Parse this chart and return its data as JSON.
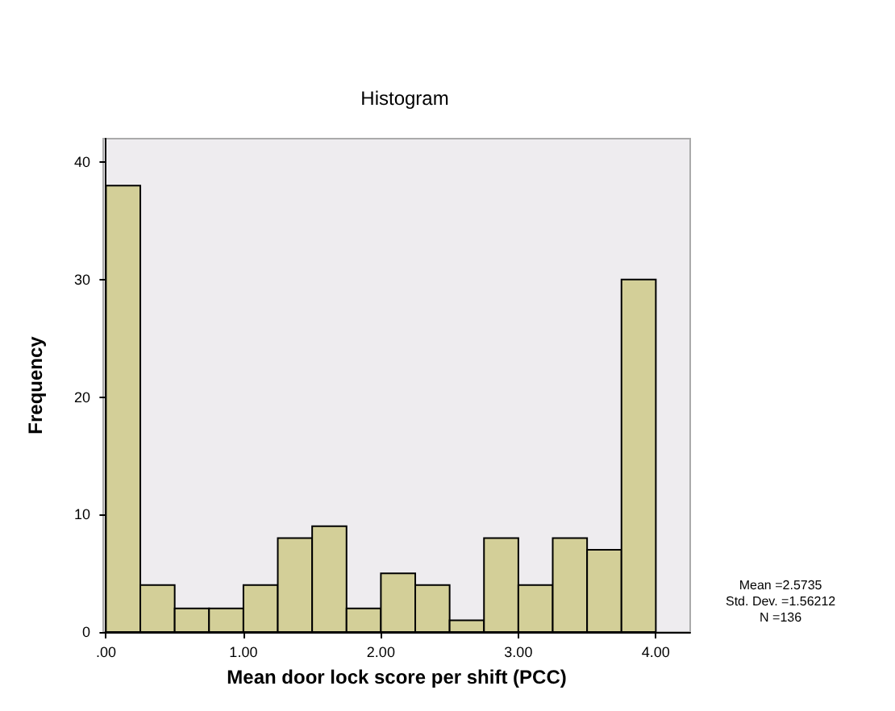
{
  "chart_data": {
    "type": "histogram",
    "title": "Histogram",
    "xlabel": "Mean door lock score per shift (PCC)",
    "ylabel": "Frequency",
    "bins": [
      0,
      0.25,
      0.5,
      0.75,
      1,
      1.25,
      1.5,
      1.75,
      2,
      2.25,
      2.5,
      2.75,
      3,
      3.25,
      3.5,
      3.75,
      4
    ],
    "values": [
      38,
      4,
      2,
      2,
      4,
      8,
      9,
      2,
      5,
      4,
      1,
      8,
      4,
      8,
      7,
      30
    ],
    "color": "#d3cf98",
    "xlim": [
      -0.02,
      4.25
    ],
    "xticks": [
      {
        "value": 0,
        "label": ".00"
      },
      {
        "value": 1,
        "label": "1.00"
      },
      {
        "value": 2,
        "label": "2.00"
      },
      {
        "value": 3,
        "label": "3.00"
      },
      {
        "value": 4,
        "label": "4.00"
      }
    ],
    "ylim": [
      0,
      42
    ],
    "yticks": [
      0,
      10,
      20,
      30,
      40
    ],
    "annotations": [
      "Mean =2.5735",
      "Std. Dev. =1.56212",
      "N =136"
    ],
    "grid": false
  }
}
